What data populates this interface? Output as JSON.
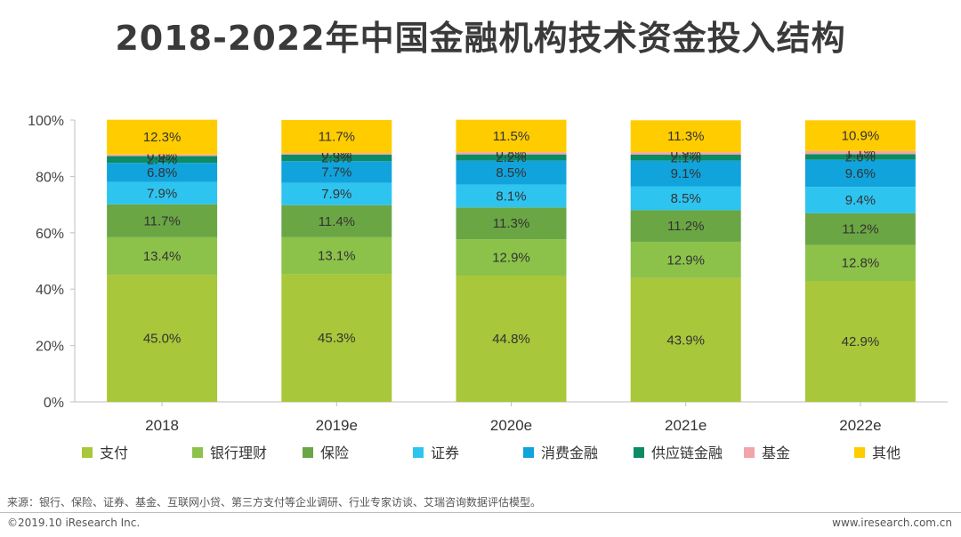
{
  "chart_data": {
    "type": "bar",
    "stacked": true,
    "title": "2018-2022年中国金融机构技术资金投入结构",
    "categories": [
      "2018",
      "2019e",
      "2020e",
      "2021e",
      "2022e"
    ],
    "yticks": [
      "0%",
      "20%",
      "40%",
      "60%",
      "80%",
      "100%"
    ],
    "ylim": [
      0,
      100
    ],
    "series": [
      {
        "name": "支付",
        "color": "#a8c73a",
        "values": [
          45.0,
          45.3,
          44.8,
          43.9,
          42.9
        ],
        "labels": [
          "45.0%",
          "45.3%",
          "44.8%",
          "43.9%",
          "42.9%"
        ]
      },
      {
        "name": "银行理财",
        "color": "#8cc24a",
        "values": [
          13.4,
          13.1,
          12.9,
          12.9,
          12.8
        ],
        "labels": [
          "13.4%",
          "13.1%",
          "12.9%",
          "12.9%",
          "12.8%"
        ]
      },
      {
        "name": "保险",
        "color": "#6ba644",
        "values": [
          11.7,
          11.4,
          11.3,
          11.2,
          11.2
        ],
        "labels": [
          "11.7%",
          "11.4%",
          "11.3%",
          "11.2%",
          "11.2%"
        ]
      },
      {
        "name": "证券",
        "color": "#2ec4f0",
        "values": [
          7.9,
          7.9,
          8.1,
          8.5,
          9.4
        ],
        "labels": [
          "7.9%",
          "7.9%",
          "8.1%",
          "8.5%",
          "9.4%"
        ]
      },
      {
        "name": "消费金融",
        "color": "#11a3dc",
        "values": [
          6.8,
          7.7,
          8.5,
          9.1,
          9.6
        ],
        "labels": [
          "6.8%",
          "7.7%",
          "8.5%",
          "9.1%",
          "9.6%"
        ]
      },
      {
        "name": "供应链金融",
        "color": "#0b8c64",
        "values": [
          2.4,
          2.3,
          2.2,
          2.1,
          2.0
        ],
        "labels": [
          "2.4%",
          "2.3%",
          "2.2%",
          "2.1%",
          "2.0%"
        ]
      },
      {
        "name": "基金",
        "color": "#f2a5a9",
        "values": [
          0.6,
          0.6,
          0.8,
          0.9,
          1.1
        ],
        "labels": [
          "0.6%",
          "0.6%",
          "0.8%",
          "0.9%",
          "1.1%"
        ]
      },
      {
        "name": "其他",
        "color": "#ffcc00",
        "values": [
          12.3,
          11.7,
          11.5,
          11.3,
          10.9
        ],
        "labels": [
          "12.3%",
          "11.7%",
          "11.5%",
          "11.3%",
          "10.9%"
        ]
      }
    ]
  },
  "source": "来源：银行、保险、证券、基金、互联网小贷、第三方支付等企业调研、行业专家访谈、艾瑞咨询数据评估模型。",
  "copyright": "©2019.10 iResearch Inc.",
  "website": "www.iresearch.com.cn"
}
